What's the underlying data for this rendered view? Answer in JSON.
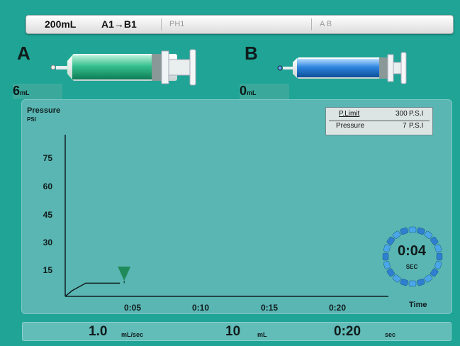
{
  "header": {
    "volume": "200mL",
    "protocol": "A1→B1",
    "phase": "PH1",
    "channels": "A B"
  },
  "syringes": {
    "a": {
      "letter": "A",
      "volume": "6",
      "unit": "mL",
      "color": "#2fb88a"
    },
    "b": {
      "letter": "B",
      "volume": "0",
      "unit": "mL",
      "color": "#2a7fd6"
    }
  },
  "graph": {
    "y_title": "Pressure",
    "y_unit": "PSI",
    "x_title": "Time",
    "y_ticks": [
      "75",
      "60",
      "45",
      "30",
      "15"
    ],
    "x_ticks": [
      "0:05",
      "0:10",
      "0:15",
      "0:20"
    ]
  },
  "limits": {
    "p_limit_label": "P.Limit",
    "p_limit_value": "300",
    "p_limit_unit": "P.S.I",
    "pressure_label": "Pressure",
    "pressure_value": "7",
    "pressure_unit": "P.S.I"
  },
  "timer": {
    "value": "0:04",
    "unit": "SEC"
  },
  "footer": {
    "rate": "1.0",
    "rate_unit": "mL/sec",
    "volume": "10",
    "volume_unit": "mL",
    "duration": "0:20",
    "duration_unit": "sec"
  },
  "chart_data": {
    "type": "line",
    "title": "",
    "xlabel": "Time",
    "ylabel": "Pressure",
    "ylim": [
      0,
      90
    ],
    "xlim": [
      "0:00",
      "0:25"
    ],
    "series": [
      {
        "values": [
          [
            0,
            0
          ],
          [
            0.5,
            3
          ],
          [
            1.5,
            7
          ],
          [
            4.0,
            7
          ]
        ]
      }
    ],
    "marker_at": "0:04"
  }
}
